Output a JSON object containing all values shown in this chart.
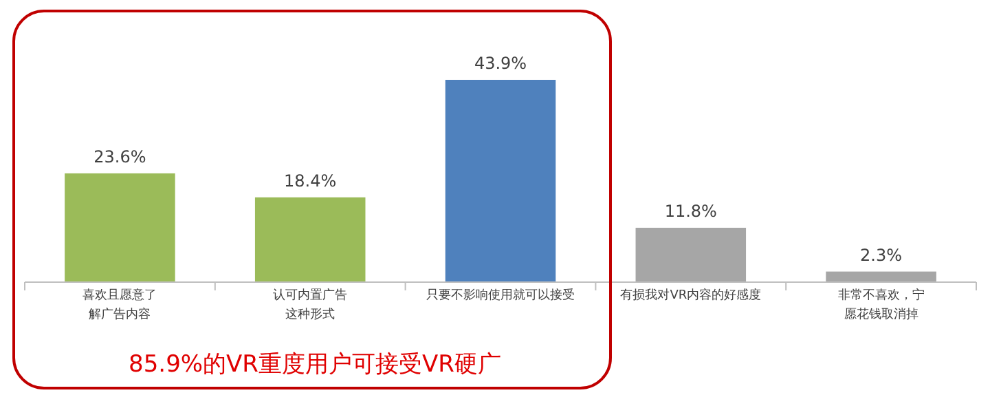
{
  "chart_data": {
    "type": "bar",
    "categories": [
      "喜欢且愿意了解广告内容",
      "认可内置广告这种形式",
      "只要不影响使用就可以接受",
      "有损我对VR内容的好感度",
      "非常不喜欢，宁愿花钱取消掉"
    ],
    "values": [
      23.6,
      18.4,
      43.9,
      11.8,
      2.3
    ],
    "colors": [
      "#9bbb59",
      "#9bbb59",
      "#4f81bd",
      "#a6a6a6",
      "#a6a6a6"
    ],
    "value_labels": [
      "23.6%",
      "18.4%",
      "43.9%",
      "11.8%",
      "2.3%"
    ],
    "annotations": [
      "85.9%的VR重度用户可接受VR硬广"
    ]
  }
}
